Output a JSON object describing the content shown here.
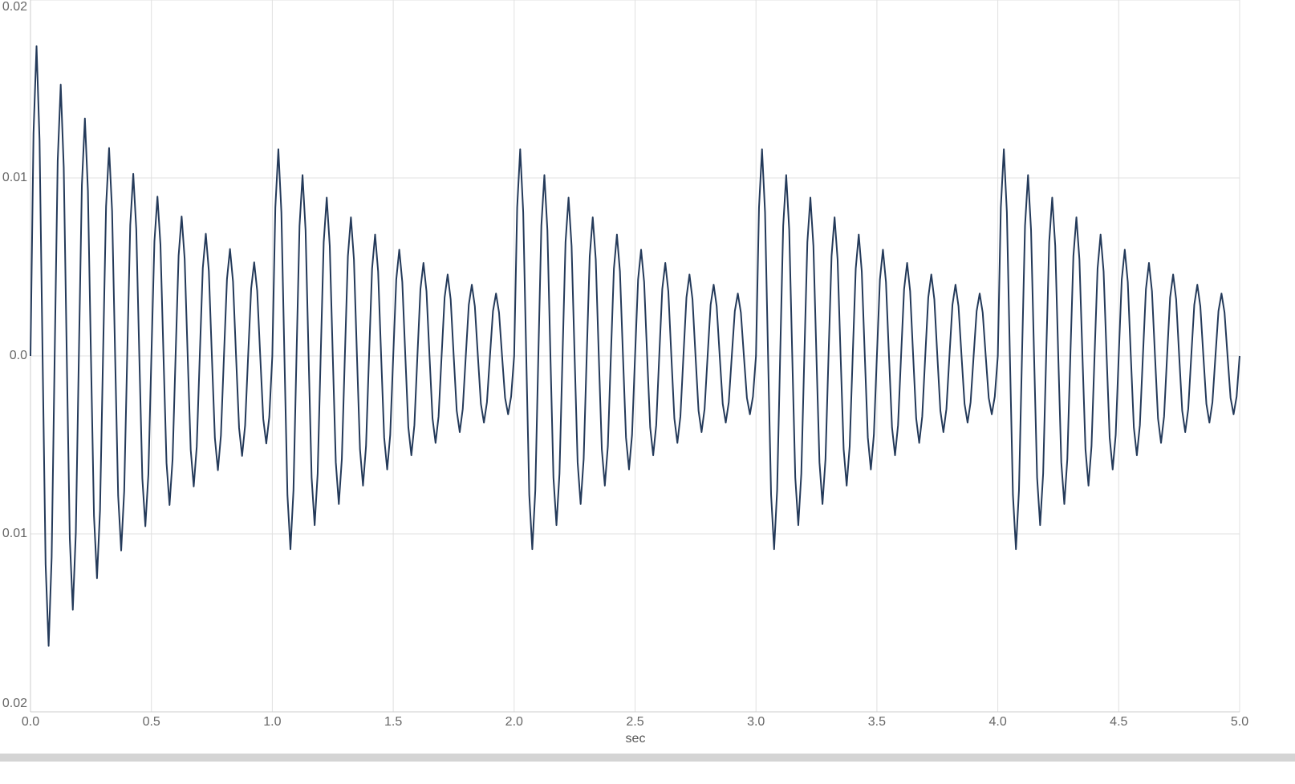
{
  "chart_data": {
    "type": "line",
    "xlabel": "sec",
    "color": "#243a5a",
    "grid": true,
    "xlim": [
      0,
      5
    ],
    "ylim": [
      -0.02,
      0.02
    ],
    "xticks": [
      {
        "value": 0,
        "label": "0.0"
      },
      0.5,
      {
        "value": 1,
        "label": "1.0"
      },
      1.5,
      {
        "value": 2,
        "label": "2.0"
      },
      2.5,
      {
        "value": 3,
        "label": "3.0"
      },
      3.5,
      {
        "value": 4,
        "label": "4.0"
      },
      4.5,
      {
        "value": 5,
        "label": "5.0"
      }
    ],
    "yticks": [
      {
        "value": -0.02,
        "label": "0.02"
      },
      {
        "value": -0.01,
        "label": "0.01"
      },
      {
        "value": 0,
        "label": "0.0"
      },
      0.01,
      0.02
    ],
    "x": [
      0,
      0.0125,
      0.025,
      0.0375,
      0.05,
      0.0625,
      0.075,
      0.0875,
      0.1,
      0.1125,
      0.125,
      0.1375,
      0.15,
      0.1625,
      0.175,
      0.1875,
      0.2,
      0.2125,
      0.225,
      0.2375,
      0.25,
      0.2625,
      0.275,
      0.2875,
      0.3,
      0.3125,
      0.325,
      0.3375,
      0.35,
      0.3625,
      0.375,
      0.3875,
      0.4,
      0.4125,
      0.425,
      0.4375,
      0.45,
      0.4625,
      0.475,
      0.4875,
      0.5,
      0.5125,
      0.525,
      0.5375,
      0.55,
      0.5625,
      0.575,
      0.5875,
      0.6,
      0.6125,
      0.625,
      0.6375,
      0.65,
      0.6625,
      0.675,
      0.6875,
      0.7,
      0.7125,
      0.725,
      0.7375,
      0.75,
      0.7625,
      0.775,
      0.7875,
      0.8,
      0.8125,
      0.825,
      0.8375,
      0.85,
      0.8625,
      0.875,
      0.8875,
      0.9,
      0.9125,
      0.925,
      0.9375,
      0.95,
      0.9625,
      0.975,
      0.9875,
      1,
      1.0125,
      1.025,
      1.0375,
      1.05,
      1.0625,
      1.075,
      1.0875,
      1.1,
      1.1125,
      1.125,
      1.1375,
      1.15,
      1.1625,
      1.175,
      1.1875,
      1.2,
      1.2125,
      1.225,
      1.2375,
      1.25,
      1.2625,
      1.275,
      1.2875,
      1.3,
      1.3125,
      1.325,
      1.3375,
      1.35,
      1.3625,
      1.375,
      1.3875,
      1.4,
      1.4125,
      1.425,
      1.4375,
      1.45,
      1.4625,
      1.475,
      1.4875,
      1.5,
      1.5125,
      1.525,
      1.5375,
      1.55,
      1.5625,
      1.575,
      1.5875,
      1.6,
      1.6125,
      1.625,
      1.6375,
      1.65,
      1.6625,
      1.675,
      1.6875,
      1.7,
      1.7125,
      1.725,
      1.7375,
      1.75,
      1.7625,
      1.775,
      1.7875,
      1.8,
      1.8125,
      1.825,
      1.8375,
      1.85,
      1.8625,
      1.875,
      1.8875,
      1.9,
      1.9125,
      1.925,
      1.9375,
      1.95,
      1.9625,
      1.975,
      1.9875,
      2,
      2.0125,
      2.025,
      2.0375,
      2.05,
      2.0625,
      2.075,
      2.0875,
      2.1,
      2.1125,
      2.125,
      2.1375,
      2.15,
      2.1625,
      2.175,
      2.1875,
      2.2,
      2.2125,
      2.225,
      2.2375,
      2.25,
      2.2625,
      2.275,
      2.2875,
      2.3,
      2.3125,
      2.325,
      2.3375,
      2.35,
      2.3625,
      2.375,
      2.3875,
      2.4,
      2.4125,
      2.425,
      2.4375,
      2.45,
      2.4625,
      2.475,
      2.4875,
      2.5,
      2.5125,
      2.525,
      2.5375,
      2.55,
      2.5625,
      2.575,
      2.5875,
      2.6,
      2.6125,
      2.625,
      2.6375,
      2.65,
      2.6625,
      2.675,
      2.6875,
      2.7,
      2.7125,
      2.725,
      2.7375,
      2.75,
      2.7625,
      2.775,
      2.7875,
      2.8,
      2.8125,
      2.825,
      2.8375,
      2.85,
      2.8625,
      2.875,
      2.8875,
      2.9,
      2.9125,
      2.925,
      2.9375,
      2.95,
      2.9625,
      2.975,
      2.9875,
      3,
      3.0125,
      3.025,
      3.0375,
      3.05,
      3.0625,
      3.075,
      3.0875,
      3.1,
      3.1125,
      3.125,
      3.1375,
      3.15,
      3.1625,
      3.175,
      3.1875,
      3.2,
      3.2125,
      3.225,
      3.2375,
      3.25,
      3.2625,
      3.275,
      3.2875,
      3.3,
      3.3125,
      3.325,
      3.3375,
      3.35,
      3.3625,
      3.375,
      3.3875,
      3.4,
      3.4125,
      3.425,
      3.4375,
      3.45,
      3.4625,
      3.475,
      3.4875,
      3.5,
      3.5125,
      3.525,
      3.5375,
      3.55,
      3.5625,
      3.575,
      3.5875,
      3.6,
      3.6125,
      3.625,
      3.6375,
      3.65,
      3.6625,
      3.675,
      3.6875,
      3.7,
      3.7125,
      3.725,
      3.7375,
      3.75,
      3.7625,
      3.775,
      3.7875,
      3.8,
      3.8125,
      3.825,
      3.8375,
      3.85,
      3.8625,
      3.875,
      3.8875,
      3.9,
      3.9125,
      3.925,
      3.9375,
      3.95,
      3.9625,
      3.975,
      3.9875,
      4,
      4.0125,
      4.025,
      4.0375,
      4.05,
      4.0625,
      4.075,
      4.0875,
      4.1,
      4.1125,
      4.125,
      4.1375,
      4.15,
      4.1625,
      4.175,
      4.1875,
      4.2,
      4.2125,
      4.225,
      4.2375,
      4.25,
      4.2625,
      4.275,
      4.2875,
      4.3,
      4.3125,
      4.325,
      4.3375,
      4.35,
      4.3625,
      4.375,
      4.3875,
      4.4,
      4.4125,
      4.425,
      4.4375,
      4.45,
      4.4625,
      4.475,
      4.4875,
      4.5,
      4.5125,
      4.525,
      4.5375,
      4.55,
      4.5625,
      4.575,
      4.5875,
      4.6,
      4.6125,
      4.625,
      4.6375,
      4.65,
      4.6625,
      4.675,
      4.6875,
      4.7,
      4.7125,
      4.725,
      4.7375,
      4.75,
      4.7625,
      4.775,
      4.7875,
      4.8,
      4.8125,
      4.825,
      4.8375,
      4.85,
      4.8625,
      4.875,
      4.8875,
      4.9,
      4.9125,
      4.925,
      4.9375,
      4.95,
      4.9625,
      4.975,
      4.9875,
      5
    ],
    "values": [
      0,
      0.012518,
      0.017412,
      0.01211,
      0,
      -0.011712,
      -0.016292,
      -0.01133,
      0,
      0.010959,
      0.015243,
      0.010602,
      0,
      -0.010254,
      -0.014262,
      -0.009918,
      0,
      0.009594,
      0.013346,
      0.009281,
      0,
      -0.008976,
      -0.012486,
      -0.008684,
      0,
      0.008399,
      0.011684,
      0.008126,
      0,
      -0.007859,
      -0.010932,
      -0.007602,
      0,
      0.007353,
      0.010229,
      0.007113,
      0,
      -0.006881,
      -0.00957,
      -0.006656,
      0,
      0.006438,
      0.008955,
      0.006228,
      0,
      -0.006023,
      -0.008378,
      -0.005826,
      0,
      0.005636,
      0.007839,
      0.005453,
      0,
      -0.005273,
      -0.007335,
      -0.0051,
      0,
      0.004934,
      0.006863,
      0.004773,
      0,
      -0.004616,
      -0.006422,
      -0.004466,
      0,
      0.004319,
      0.006008,
      0.004179,
      0,
      -0.004041,
      -0.005622,
      -0.003909,
      0,
      0.003782,
      0.005261,
      0.003659,
      0,
      -0.003539,
      -0.004922,
      -0.003423,
      0,
      0.008345,
      0.011608,
      0.008073,
      0,
      -0.007808,
      -0.010861,
      -0.007553,
      0,
      0.007306,
      0.010162,
      0.007068,
      0,
      -0.006836,
      -0.009508,
      -0.006612,
      0,
      0.006396,
      0.008897,
      0.006187,
      0,
      -0.005984,
      -0.008324,
      -0.005789,
      0,
      0.005599,
      0.007789,
      0.005417,
      0,
      -0.005239,
      -0.007288,
      -0.005068,
      0,
      0.004902,
      0.006819,
      0.004742,
      0,
      -0.004587,
      -0.00638,
      -0.004437,
      0,
      0.004292,
      0.00597,
      0.004152,
      0,
      -0.004015,
      -0.005585,
      -0.003884,
      0,
      0.003757,
      0.005226,
      0.003635,
      0,
      -0.003515,
      -0.00489,
      -0.0034,
      0,
      0.003289,
      0.004575,
      0.003182,
      0,
      -0.003077,
      -0.004281,
      -0.002977,
      0,
      0.002879,
      0.004005,
      0.002786,
      0,
      -0.002694,
      -0.003748,
      -0.002606,
      0,
      0.002521,
      0.003507,
      0.002439,
      0,
      -0.002359,
      -0.003281,
      -0.002282,
      0,
      0.008345,
      0.011608,
      0.008073,
      0,
      -0.007808,
      -0.010861,
      -0.007553,
      0,
      0.007306,
      0.010162,
      0.007068,
      0,
      -0.006836,
      -0.009508,
      -0.006612,
      0,
      0.006396,
      0.008897,
      0.006187,
      0,
      -0.005984,
      -0.008324,
      -0.005789,
      0,
      0.005599,
      0.007789,
      0.005417,
      0,
      -0.005239,
      -0.007288,
      -0.005068,
      0,
      0.004902,
      0.006819,
      0.004742,
      0,
      -0.004587,
      -0.00638,
      -0.004437,
      0,
      0.004292,
      0.00597,
      0.004152,
      0,
      -0.004015,
      -0.005585,
      -0.003884,
      0,
      0.003757,
      0.005226,
      0.003635,
      0,
      -0.003515,
      -0.00489,
      -0.0034,
      0,
      0.003289,
      0.004575,
      0.003182,
      0,
      -0.003077,
      -0.004281,
      -0.002977,
      0,
      0.002879,
      0.004005,
      0.002786,
      0,
      -0.002694,
      -0.003748,
      -0.002606,
      0,
      0.002521,
      0.003507,
      0.002439,
      0,
      -0.002359,
      -0.003281,
      -0.002282,
      0,
      0.008345,
      0.011608,
      0.008073,
      0,
      -0.007808,
      -0.010861,
      -0.007553,
      0,
      0.007306,
      0.010162,
      0.007068,
      0,
      -0.006836,
      -0.009508,
      -0.006612,
      0,
      0.006396,
      0.008897,
      0.006187,
      0,
      -0.005984,
      -0.008324,
      -0.005789,
      0,
      0.005599,
      0.007789,
      0.005417,
      0,
      -0.005239,
      -0.007288,
      -0.005068,
      0,
      0.004902,
      0.006819,
      0.004742,
      0,
      -0.004587,
      -0.00638,
      -0.004437,
      0,
      0.004292,
      0.00597,
      0.004152,
      0,
      -0.004015,
      -0.005585,
      -0.003884,
      0,
      0.003757,
      0.005226,
      0.003635,
      0,
      -0.003515,
      -0.00489,
      -0.0034,
      0,
      0.003289,
      0.004575,
      0.003182,
      0,
      -0.003077,
      -0.004281,
      -0.002977,
      0,
      0.002879,
      0.004005,
      0.002786,
      0,
      -0.002694,
      -0.003748,
      -0.002606,
      0,
      0.002521,
      0.003507,
      0.002439,
      0,
      -0.002359,
      -0.003281,
      -0.002282,
      0,
      0.008345,
      0.011608,
      0.008073,
      0,
      -0.007808,
      -0.010861,
      -0.007553,
      0,
      0.007306,
      0.010162,
      0.007068,
      0,
      -0.006836,
      -0.009508,
      -0.006612,
      0,
      0.006396,
      0.008897,
      0.006187,
      0,
      -0.005984,
      -0.008324,
      -0.005789,
      0,
      0.005599,
      0.007789,
      0.005417,
      0,
      -0.005239,
      -0.007288,
      -0.005068,
      0,
      0.004902,
      0.006819,
      0.004742,
      0,
      -0.004587,
      -0.00638,
      -0.004437,
      0,
      0.004292,
      0.00597,
      0.004152,
      0,
      -0.004015,
      -0.005585,
      -0.003884,
      0,
      0.003757,
      0.005226,
      0.003635,
      0,
      -0.003515,
      -0.00489,
      -0.0034,
      0,
      0.003289,
      0.004575,
      0.003182,
      0,
      -0.003077,
      -0.004281,
      -0.002977,
      0,
      0.002879,
      0.004005,
      0.002786,
      0,
      -0.002694,
      -0.003748,
      -0.002606,
      0,
      0.002521,
      0.003507,
      0.002439,
      0,
      -0.002359,
      -0.003281,
      -0.002282,
      0
    ]
  }
}
